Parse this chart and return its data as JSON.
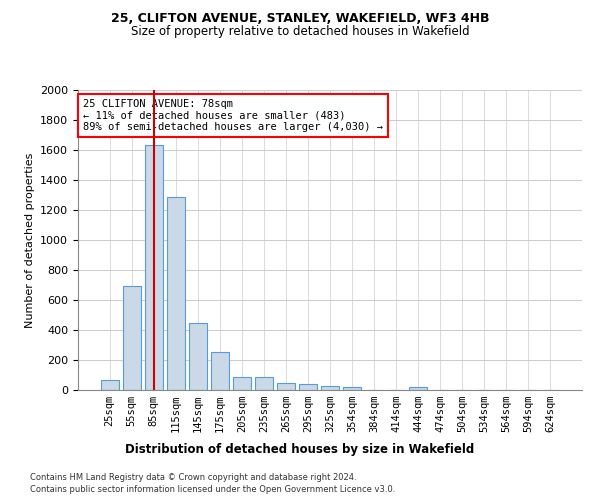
{
  "title_line1": "25, CLIFTON AVENUE, STANLEY, WAKEFIELD, WF3 4HB",
  "title_line2": "Size of property relative to detached houses in Wakefield",
  "xlabel": "Distribution of detached houses by size in Wakefield",
  "ylabel": "Number of detached properties",
  "bar_color": "#c9d9e8",
  "bar_edge_color": "#5b9bd5",
  "property_line_color": "#cc0000",
  "annotation_text": "25 CLIFTON AVENUE: 78sqm\n← 11% of detached houses are smaller (483)\n89% of semi-detached houses are larger (4,030) →",
  "footer_line1": "Contains HM Land Registry data © Crown copyright and database right 2024.",
  "footer_line2": "Contains public sector information licensed under the Open Government Licence v3.0.",
  "categories": [
    "25sqm",
    "55sqm",
    "85sqm",
    "115sqm",
    "145sqm",
    "175sqm",
    "205sqm",
    "235sqm",
    "265sqm",
    "295sqm",
    "325sqm",
    "354sqm",
    "384sqm",
    "414sqm",
    "444sqm",
    "474sqm",
    "504sqm",
    "534sqm",
    "564sqm",
    "594sqm",
    "624sqm"
  ],
  "values": [
    65,
    695,
    1635,
    1285,
    445,
    255,
    90,
    85,
    50,
    40,
    28,
    20,
    0,
    0,
    20,
    0,
    0,
    0,
    0,
    0,
    0
  ],
  "ylim": [
    0,
    2000
  ],
  "yticks": [
    0,
    200,
    400,
    600,
    800,
    1000,
    1200,
    1400,
    1600,
    1800,
    2000
  ],
  "background_color": "#ffffff",
  "grid_color": "#cccccc",
  "property_line_x": 2.0
}
